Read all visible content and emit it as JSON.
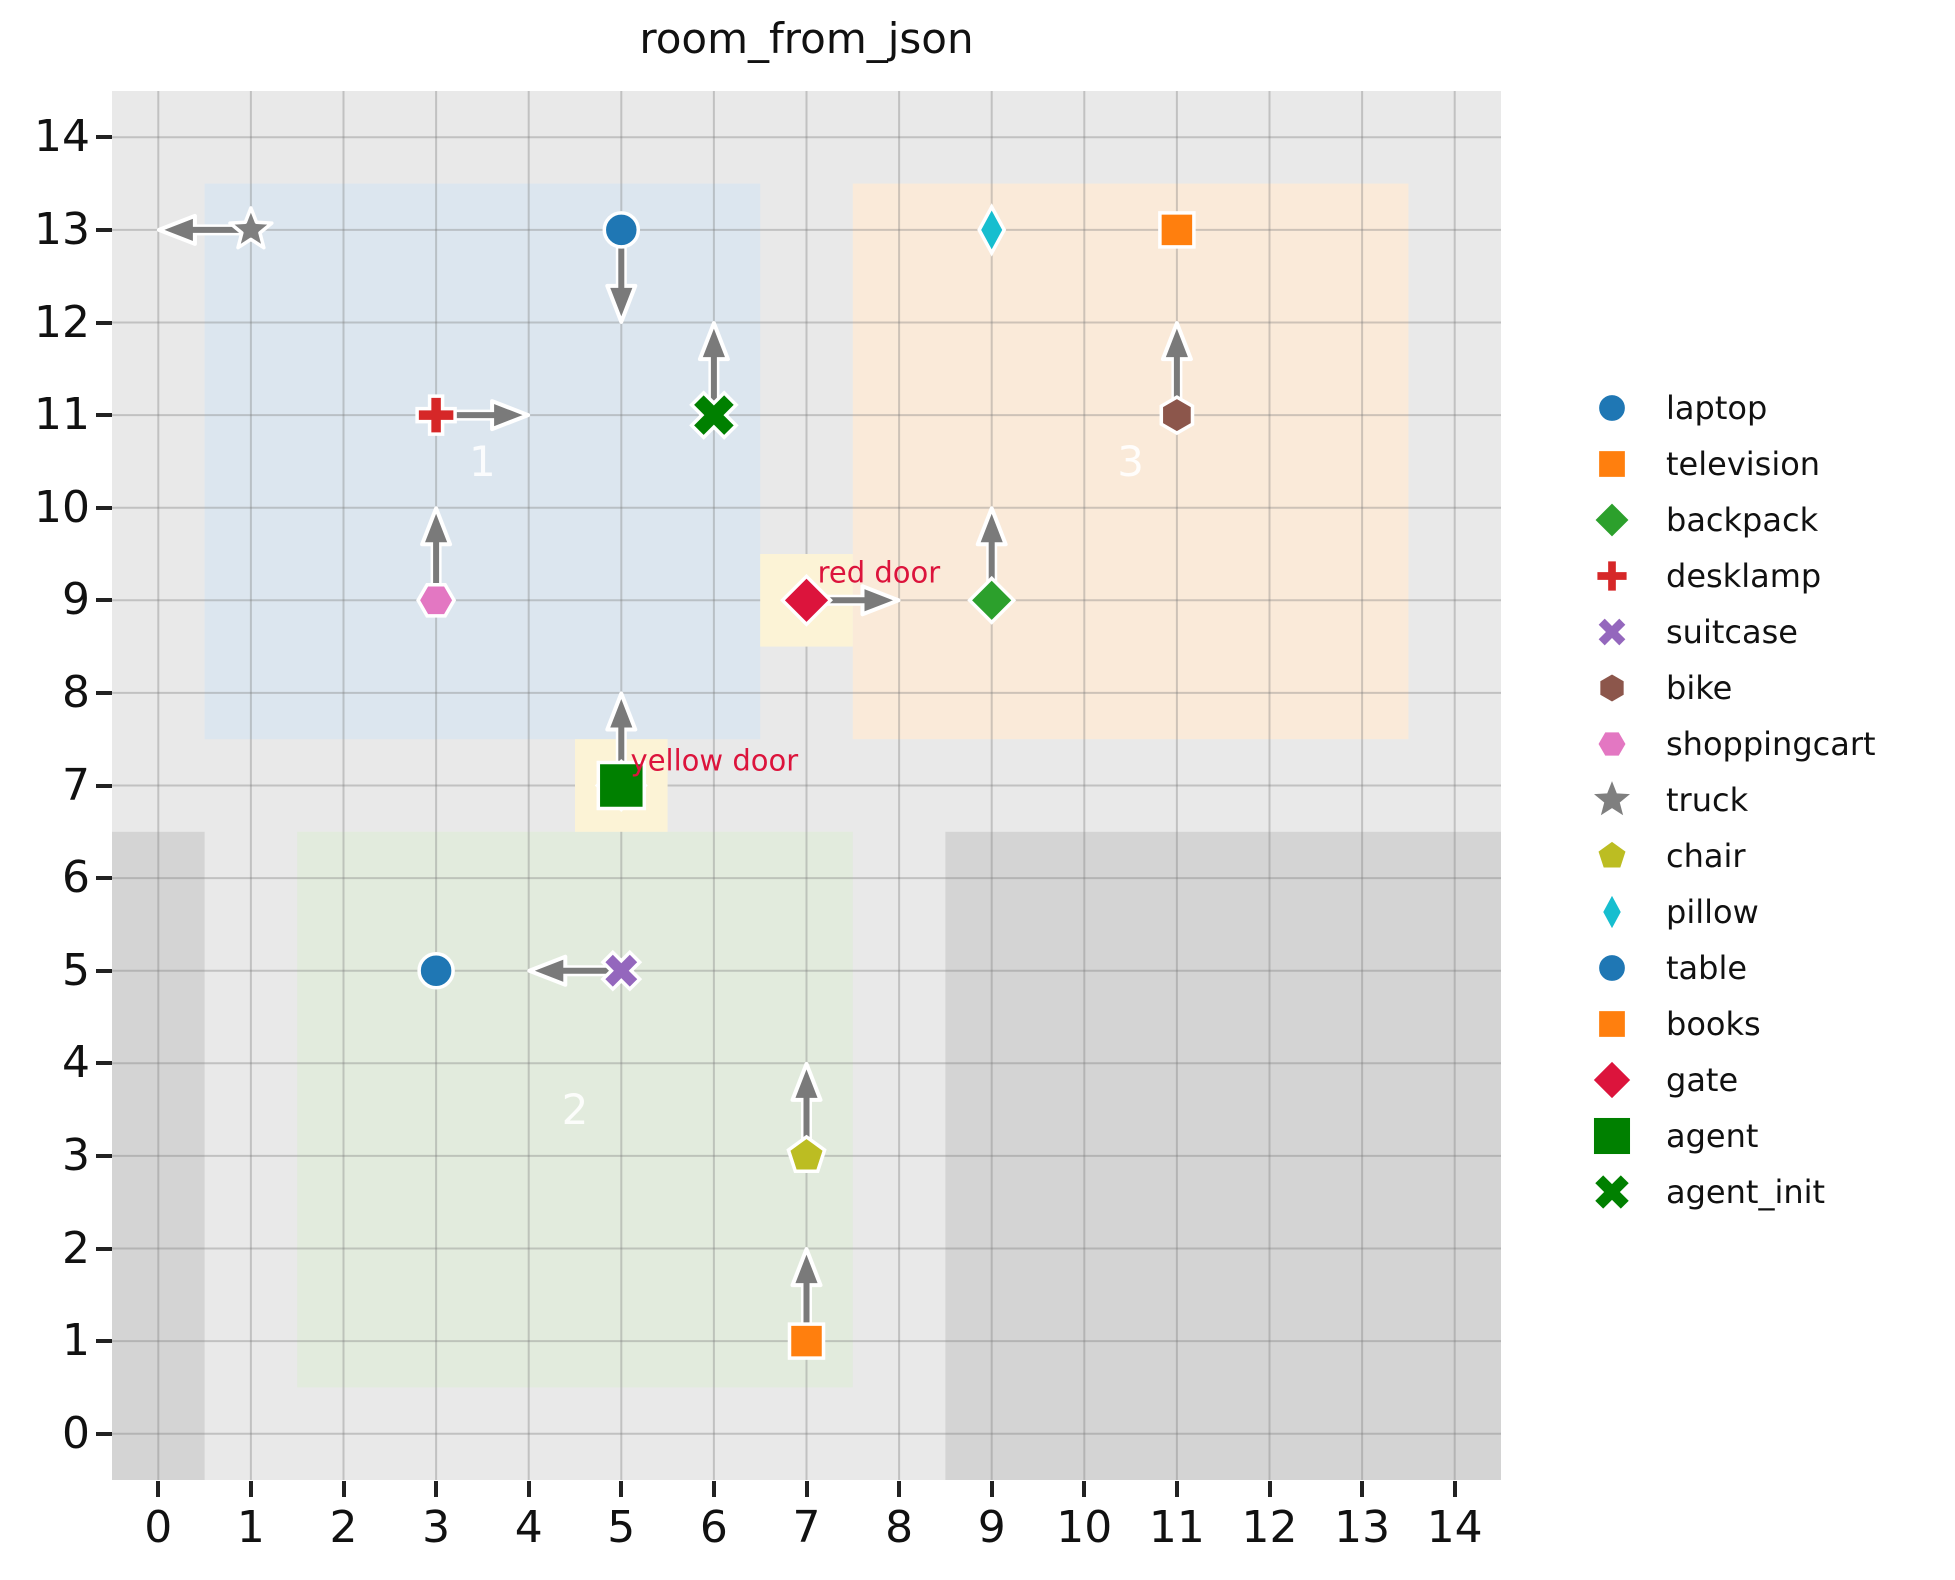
{
  "title": "room_from_json",
  "colors": {
    "plot_bg": "#e9e9e9",
    "blocked": "#d4d4d4",
    "grid": "rgba(120,120,120,0.35)",
    "door_fill": "#fcf3d6",
    "door_text": "#dc143c",
    "room_label": "rgba(255,255,255,0.88)",
    "arrow": "#7a7a7a"
  },
  "chart_data": {
    "type": "scatter",
    "title": "room_from_json",
    "xlim": [
      -0.5,
      14.5
    ],
    "ylim": [
      -0.5,
      14.5
    ],
    "x_ticks": [
      "0",
      "1",
      "2",
      "3",
      "4",
      "5",
      "6",
      "7",
      "8",
      "9",
      "10",
      "11",
      "12",
      "13",
      "14"
    ],
    "y_ticks": [
      "0",
      "1",
      "2",
      "3",
      "4",
      "5",
      "6",
      "7",
      "8",
      "9",
      "10",
      "11",
      "12",
      "13",
      "14"
    ],
    "grid": true,
    "legend_position": "right-outside",
    "rooms": [
      {
        "label": "1",
        "x0": 0.5,
        "y0": 7.5,
        "x1": 6.5,
        "y1": 13.5,
        "fill": "#dce6ef",
        "label_x": 3.5,
        "label_y": 10.5
      },
      {
        "label": "2",
        "x0": 1.5,
        "y0": 0.5,
        "x1": 7.5,
        "y1": 6.5,
        "fill": "#e2ebdd",
        "label_x": 4.5,
        "label_y": 3.5
      },
      {
        "label": "3",
        "x0": 7.5,
        "y0": 7.5,
        "x1": 13.5,
        "y1": 13.5,
        "fill": "#faead9",
        "label_x": 10.5,
        "label_y": 10.5
      }
    ],
    "blocked_regions": [
      {
        "x0": -0.5,
        "y0": -0.5,
        "x1": 0.5,
        "y1": 6.5
      },
      {
        "x0": 8.5,
        "y0": -0.5,
        "x1": 14.5,
        "y1": 6.5
      }
    ],
    "doors": [
      {
        "label": "red door",
        "x": 7,
        "y": 9,
        "sq_x0": 6.5,
        "sq_y0": 8.5,
        "sq_x1": 7.5,
        "sq_y1": 9.5,
        "text_x": 7.12,
        "text_y": 9.3
      },
      {
        "label": "yellow door",
        "x": 5,
        "y": 7,
        "sq_x0": 4.5,
        "sq_y0": 6.5,
        "sq_x1": 5.5,
        "sq_y1": 7.5,
        "text_x": 5.1,
        "text_y": 7.27
      }
    ],
    "objects": [
      {
        "name": "gate",
        "x": 7,
        "y": 9,
        "marker": "diamond-big",
        "color": "#dc143c",
        "orientation": "right"
      },
      {
        "name": "truck",
        "x": 1,
        "y": 13,
        "marker": "star",
        "color": "#7f7f7f",
        "orientation": "left"
      },
      {
        "name": "laptop",
        "x": 5,
        "y": 13,
        "marker": "circle",
        "color": "#1f77b4",
        "orientation": "down"
      },
      {
        "name": "pillow",
        "x": 9,
        "y": 13,
        "marker": "thin-diamond",
        "color": "#17becf",
        "orientation": null
      },
      {
        "name": "television",
        "x": 11,
        "y": 13,
        "marker": "square",
        "color": "#ff7f0e",
        "orientation": null
      },
      {
        "name": "desklamp",
        "x": 3,
        "y": 11,
        "marker": "plus",
        "color": "#d62728",
        "orientation": "right"
      },
      {
        "name": "agent_init",
        "x": 6,
        "y": 11,
        "marker": "x-big",
        "color": "#008000",
        "orientation": "up"
      },
      {
        "name": "bike",
        "x": 11,
        "y": 11,
        "marker": "hexagon-v",
        "color": "#8c564b",
        "orientation": "up"
      },
      {
        "name": "shoppingcart",
        "x": 3,
        "y": 9,
        "marker": "hexagon-h",
        "color": "#e377c2",
        "orientation": "up"
      },
      {
        "name": "backpack",
        "x": 9,
        "y": 9,
        "marker": "diamond",
        "color": "#2ca02c",
        "orientation": "up"
      },
      {
        "name": "agent",
        "x": 5,
        "y": 7,
        "marker": "square-big",
        "color": "#008000",
        "orientation": "up",
        "under": "diamond-big",
        "under_color": "#dc143c"
      },
      {
        "name": "table",
        "x": 3,
        "y": 5,
        "marker": "circle",
        "color": "#1f77b4",
        "orientation": null
      },
      {
        "name": "suitcase",
        "x": 5,
        "y": 5,
        "marker": "x",
        "color": "#9467bd",
        "orientation": "left"
      },
      {
        "name": "chair",
        "x": 7,
        "y": 3,
        "marker": "pentagon",
        "color": "#bcbd22",
        "orientation": "up"
      },
      {
        "name": "books",
        "x": 7,
        "y": 1,
        "marker": "square",
        "color": "#ff7f0e",
        "orientation": "up"
      }
    ],
    "legend": [
      {
        "label": "laptop",
        "marker": "circle",
        "color": "#1f77b4"
      },
      {
        "label": "television",
        "marker": "square",
        "color": "#ff7f0e"
      },
      {
        "label": "backpack",
        "marker": "diamond",
        "color": "#2ca02c"
      },
      {
        "label": "desklamp",
        "marker": "plus",
        "color": "#d62728"
      },
      {
        "label": "suitcase",
        "marker": "x",
        "color": "#9467bd"
      },
      {
        "label": "bike",
        "marker": "hexagon-v",
        "color": "#8c564b"
      },
      {
        "label": "shoppingcart",
        "marker": "hexagon-h",
        "color": "#e377c2"
      },
      {
        "label": "truck",
        "marker": "star-plain",
        "color": "#7f7f7f"
      },
      {
        "label": "chair",
        "marker": "pentagon",
        "color": "#bcbd22"
      },
      {
        "label": "pillow",
        "marker": "thin-diamond",
        "color": "#17becf"
      },
      {
        "label": "table",
        "marker": "circle",
        "color": "#1f77b4"
      },
      {
        "label": "books",
        "marker": "square",
        "color": "#ff7f0e"
      },
      {
        "label": "gate",
        "marker": "diamond-big",
        "color": "#dc143c"
      },
      {
        "label": "agent",
        "marker": "square-big",
        "color": "#008000"
      },
      {
        "label": "agent_init",
        "marker": "x-big",
        "color": "#008000"
      }
    ]
  }
}
